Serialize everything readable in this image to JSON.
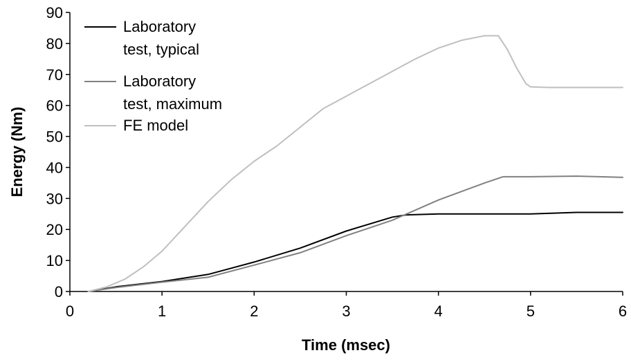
{
  "chart_data": {
    "type": "line",
    "title": "",
    "xlabel": "Time (msec)",
    "ylabel": "Energy (Nm)",
    "xlim": [
      0,
      6
    ],
    "ylim": [
      0,
      90
    ],
    "xticks": [
      "0",
      "1",
      "2",
      "3",
      "4",
      "5",
      "6"
    ],
    "yticks": [
      "0",
      "10",
      "20",
      "30",
      "40",
      "50",
      "60",
      "70",
      "80",
      "90"
    ],
    "grid": false,
    "legend": {
      "position": "top-left",
      "entries": [
        [
          "Laboratory",
          "test, typical"
        ],
        [
          "Laboratory",
          "test, maximum"
        ],
        [
          "FE model"
        ]
      ]
    },
    "series": [
      {
        "name": "Laboratory test, typical",
        "color": "#000000",
        "x": [
          0.2,
          0.5,
          1.0,
          1.5,
          2.0,
          2.5,
          3.0,
          3.5,
          3.65,
          4.0,
          4.5,
          5.0,
          5.5,
          6.0
        ],
        "y": [
          0,
          1.5,
          3.2,
          5.5,
          9.5,
          14,
          19.5,
          24,
          24.7,
          25,
          25,
          25,
          25.5,
          25.5
        ]
      },
      {
        "name": "Laboratory test, maximum",
        "color": "#808080",
        "x": [
          0.2,
          0.5,
          1.0,
          1.5,
          2.0,
          2.5,
          3.0,
          3.5,
          4.0,
          4.5,
          4.7,
          5.0,
          5.5,
          6.0
        ],
        "y": [
          0,
          1.3,
          3.0,
          4.6,
          8.5,
          12.5,
          18,
          23,
          29.5,
          35,
          37,
          37,
          37.2,
          36.8
        ]
      },
      {
        "name": "FE model",
        "color": "#bfbfbf",
        "x": [
          0.2,
          0.4,
          0.6,
          0.8,
          1.0,
          1.25,
          1.5,
          1.75,
          2.0,
          2.25,
          2.5,
          2.75,
          3.0,
          3.25,
          3.5,
          3.75,
          4.0,
          4.25,
          4.5,
          4.65,
          4.75,
          4.85,
          4.95,
          5.0,
          5.2,
          5.5,
          5.8,
          6.0
        ],
        "y": [
          0,
          1.5,
          4,
          8,
          13,
          21,
          29,
          36,
          42,
          47,
          53,
          59,
          63,
          67,
          71,
          75,
          78.5,
          81,
          82.5,
          82.5,
          78,
          72,
          67,
          66,
          65.8,
          65.8,
          65.8,
          65.8
        ]
      }
    ]
  }
}
